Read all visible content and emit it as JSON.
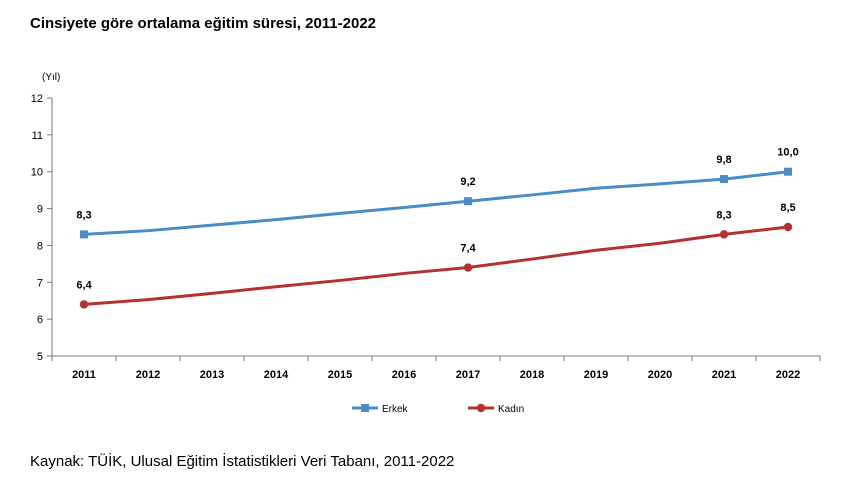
{
  "title": "Cinsiyete göre ortalama eğitim süresi, 2011-2022",
  "source": "Kaynak: TÜİK, Ulusal Eğitim İstatistikleri Veri Tabanı, 2011-2022",
  "chart_data": {
    "type": "line",
    "title": "Cinsiyete göre ortalama eğitim süresi, 2011-2022",
    "xlabel": "",
    "ylabel": "(Yıl)",
    "x": [
      "2011",
      "2012",
      "2013",
      "2014",
      "2015",
      "2016",
      "2017",
      "2018",
      "2019",
      "2020",
      "2021",
      "2022"
    ],
    "ylim": [
      5,
      12
    ],
    "yticks": [
      "5",
      "6",
      "7",
      "8",
      "9",
      "10",
      "11",
      "12"
    ],
    "grid": false,
    "legend": "bottom",
    "series": [
      {
        "name": "Erkek",
        "color": "#4a8cc6",
        "marker": "square",
        "values": [
          8.3,
          8.4,
          8.55,
          8.7,
          8.87,
          9.03,
          9.2,
          9.37,
          9.55,
          9.67,
          9.8,
          10.0
        ],
        "labels": [
          {
            "index": 0,
            "text": "8,3"
          },
          {
            "index": 6,
            "text": "9,2"
          },
          {
            "index": 10,
            "text": "9,8"
          },
          {
            "index": 11,
            "text": "10,0"
          }
        ]
      },
      {
        "name": "Kadın",
        "color": "#b5312e",
        "marker": "circle",
        "values": [
          6.4,
          6.53,
          6.7,
          6.88,
          7.05,
          7.24,
          7.4,
          7.63,
          7.87,
          8.06,
          8.3,
          8.5
        ],
        "labels": [
          {
            "index": 0,
            "text": "6,4"
          },
          {
            "index": 6,
            "text": "7,4"
          },
          {
            "index": 10,
            "text": "8,3"
          },
          {
            "index": 11,
            "text": "8,5"
          }
        ]
      }
    ]
  }
}
